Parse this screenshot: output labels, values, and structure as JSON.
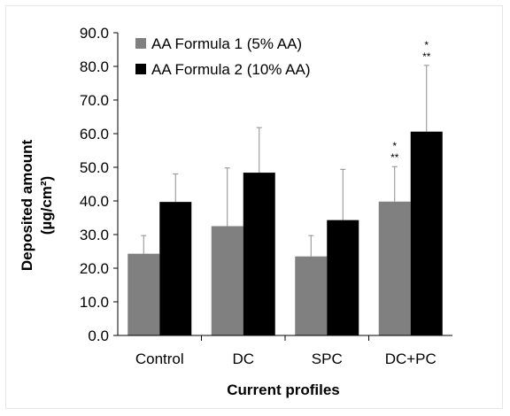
{
  "chart_data": {
    "type": "bar",
    "categories": [
      "Control",
      "DC",
      "SPC",
      "DC+PC"
    ],
    "series": [
      {
        "name": "AA Formula 1 (5% AA)",
        "color": "#808080",
        "values": [
          24.3,
          32.5,
          23.5,
          39.8
        ],
        "error_upper": [
          29.7,
          49.8,
          29.7,
          50.2
        ]
      },
      {
        "name": "AA Formula 2 (10% AA)",
        "color": "#000000",
        "values": [
          39.7,
          48.4,
          34.3,
          60.6
        ],
        "error_upper": [
          48.0,
          61.8,
          49.4,
          80.3
        ]
      }
    ],
    "significance": [
      {
        "category": "DC+PC",
        "series": 0,
        "lines": [
          "*",
          "**"
        ]
      },
      {
        "category": "DC+PC",
        "series": 1,
        "lines": [
          "*",
          "**"
        ]
      }
    ],
    "ytick_labels": [
      "0.0",
      "10.0",
      "20.0",
      "30.0",
      "40.0",
      "50.0",
      "60.0",
      "70.0",
      "80.0",
      "90.0"
    ],
    "ylim": [
      0,
      90
    ],
    "xlabel": "Current profiles",
    "ylabel_line1": "Deposited amount",
    "ylabel_line2": "(µg/cm²)",
    "legend_position": "top-left",
    "grid": false
  }
}
